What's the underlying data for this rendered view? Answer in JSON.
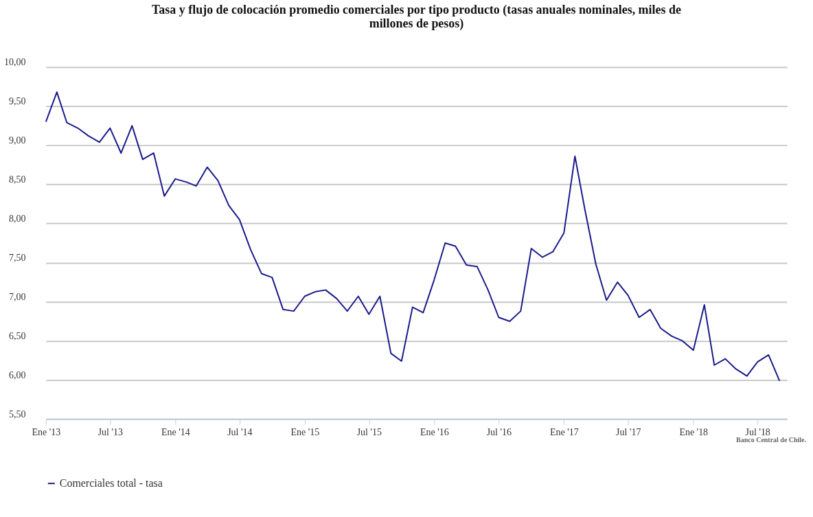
{
  "chart_data": {
    "type": "line",
    "title": "Tasa y flujo de colocación promedio comerciales por tipo producto (tasas anuales nominales, miles de millones de pesos)",
    "x": [
      "2013-01",
      "2013-02",
      "2013-03",
      "2013-04",
      "2013-05",
      "2013-06",
      "2013-07",
      "2013-08",
      "2013-09",
      "2013-10",
      "2013-11",
      "2013-12",
      "2014-01",
      "2014-02",
      "2014-03",
      "2014-04",
      "2014-05",
      "2014-06",
      "2014-07",
      "2014-08",
      "2014-09",
      "2014-10",
      "2014-11",
      "2014-12",
      "2015-01",
      "2015-02",
      "2015-03",
      "2015-04",
      "2015-05",
      "2015-06",
      "2015-07",
      "2015-08",
      "2015-09",
      "2015-10",
      "2015-11",
      "2015-12",
      "2016-01",
      "2016-02",
      "2016-03",
      "2016-04",
      "2016-05",
      "2016-06",
      "2016-07",
      "2016-08",
      "2016-09",
      "2016-10",
      "2016-11",
      "2016-12",
      "2017-01",
      "2017-02",
      "2017-03",
      "2017-04",
      "2017-05",
      "2017-06",
      "2017-07",
      "2017-08",
      "2017-09",
      "2017-10",
      "2017-11",
      "2017-12",
      "2018-01",
      "2018-02",
      "2018-03",
      "2018-04",
      "2018-05",
      "2018-06",
      "2018-07",
      "2018-08",
      "2018-09"
    ],
    "series": [
      {
        "name": "Comerciales total - tasa",
        "color": "#1a1a8c",
        "values": [
          9.3,
          9.68,
          9.29,
          9.22,
          9.12,
          9.04,
          9.22,
          8.9,
          9.25,
          8.82,
          8.9,
          8.35,
          8.57,
          8.53,
          8.48,
          8.72,
          8.55,
          8.23,
          8.05,
          7.67,
          7.36,
          7.31,
          6.9,
          6.88,
          7.07,
          7.13,
          7.15,
          7.04,
          6.88,
          7.07,
          6.84,
          7.07,
          6.34,
          6.24,
          6.93,
          6.86,
          7.28,
          7.75,
          7.71,
          7.47,
          7.45,
          7.15,
          6.8,
          6.75,
          6.88,
          7.68,
          7.57,
          7.64,
          7.88,
          8.86,
          8.18,
          7.48,
          7.02,
          7.25,
          7.08,
          6.8,
          6.9,
          6.66,
          6.56,
          6.5,
          6.38,
          6.96,
          6.19,
          6.27,
          6.14,
          6.05,
          6.23,
          6.32,
          5.99
        ]
      }
    ],
    "xlim": [
      "2013-01-01",
      "2018-09-22"
    ],
    "xticks": [
      {
        "value": "2013-01",
        "label": "Ene '13"
      },
      {
        "value": "2013-07",
        "label": "Jul '13"
      },
      {
        "value": "2014-01",
        "label": "Ene '14"
      },
      {
        "value": "2014-07",
        "label": "Jul '14"
      },
      {
        "value": "2015-01",
        "label": "Ene '15"
      },
      {
        "value": "2015-07",
        "label": "Jul '15"
      },
      {
        "value": "2016-01",
        "label": "Ene '16"
      },
      {
        "value": "2016-07",
        "label": "Jul '16"
      },
      {
        "value": "2017-01",
        "label": "Ene '17"
      },
      {
        "value": "2017-07",
        "label": "Jul '17"
      },
      {
        "value": "2018-01",
        "label": "Ene '18"
      },
      {
        "value": "2018-07",
        "label": "Jul '18"
      }
    ],
    "ylim": [
      5.5,
      10
    ],
    "yticks": [
      {
        "value": 5.5,
        "label": "5,50"
      },
      {
        "value": 6,
        "label": "6,00"
      },
      {
        "value": 6.5,
        "label": "6,50"
      },
      {
        "value": 7,
        "label": "7,00"
      },
      {
        "value": 7.5,
        "label": "7,50"
      },
      {
        "value": 8,
        "label": "8,00"
      },
      {
        "value": 8.5,
        "label": "8,50"
      },
      {
        "value": 9,
        "label": "9,00"
      },
      {
        "value": 9.5,
        "label": "9,50"
      },
      {
        "value": 10,
        "label": "10,00"
      }
    ],
    "grid": "y",
    "legend": "bottom",
    "marker": "none",
    "line_style": "solid",
    "annotations": [
      "Banco Central de Chile."
    ]
  }
}
